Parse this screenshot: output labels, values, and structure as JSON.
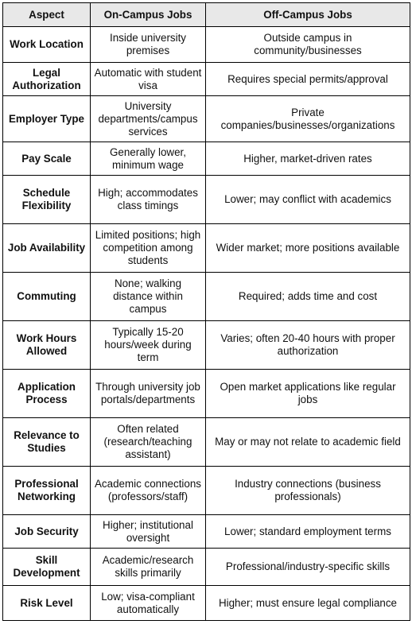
{
  "headers": [
    "Aspect",
    "On-Campus Jobs",
    "Off-Campus Jobs"
  ],
  "rows": [
    {
      "aspect": "Work Location",
      "on": "Inside university premises",
      "off": "Outside campus in community/businesses"
    },
    {
      "aspect": "Legal Authorization",
      "on": "Automatic with student visa",
      "off": "Requires special permits/approval"
    },
    {
      "aspect": "Employer Type",
      "on": "University departments/campus services",
      "off": "Private companies/businesses/organizations"
    },
    {
      "aspect": "Pay Scale",
      "on": "Generally lower, minimum wage",
      "off": "Higher, market-driven rates"
    },
    {
      "aspect": "Schedule Flexibility",
      "on": "High; accommodates class timings",
      "off": "Lower; may conflict with academics"
    },
    {
      "aspect": "Job Availability",
      "on": "Limited positions; high competition among students",
      "off": "Wider market; more positions available"
    },
    {
      "aspect": "Commuting",
      "on": "None; walking distance within campus",
      "off": "Required; adds time and cost"
    },
    {
      "aspect": "Work Hours Allowed",
      "on": "Typically 15-20 hours/week during term",
      "off": "Varies; often 20-40 hours with proper authorization"
    },
    {
      "aspect": "Application Process",
      "on": "Through university job portals/departments",
      "off": "Open market applications like regular jobs"
    },
    {
      "aspect": "Relevance to Studies",
      "on": "Often related (research/teaching assistant)",
      "off": "May or may not relate to academic field"
    },
    {
      "aspect": "Professional Networking",
      "on": "Academic connections (professors/staff)",
      "off": "Industry connections (business professionals)"
    },
    {
      "aspect": "Job Security",
      "on": "Higher; institutional oversight",
      "off": "Lower; standard employment terms"
    },
    {
      "aspect": "Skill Development",
      "on": "Academic/research skills primarily",
      "off": "Professional/industry-specific skills"
    },
    {
      "aspect": "Risk Level",
      "on": "Low; visa-compliant automatically",
      "off": "Higher; must ensure legal compliance"
    }
  ]
}
